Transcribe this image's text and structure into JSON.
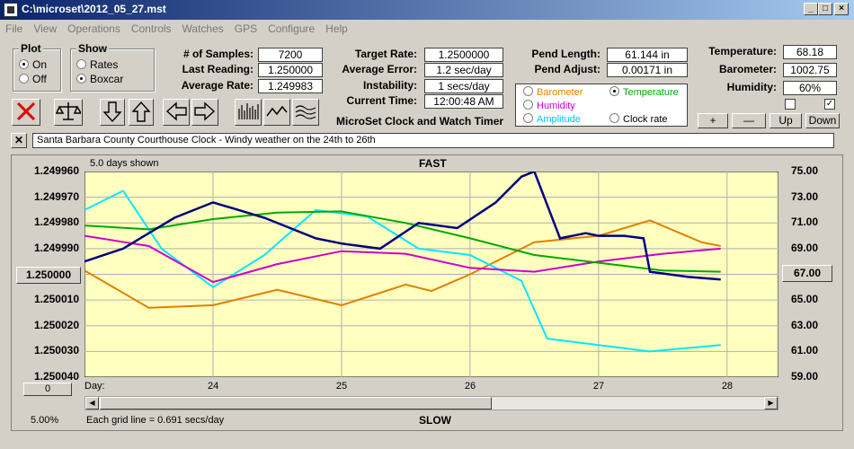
{
  "window": {
    "title": "C:\\microset\\2012_05_27.mst"
  },
  "menu": [
    "File",
    "View",
    "Operations",
    "Controls",
    "Watches",
    "GPS",
    "Configure",
    "Help"
  ],
  "plot": {
    "label": "Plot",
    "on": "On",
    "off": "Off",
    "selected": "On"
  },
  "show": {
    "label": "Show",
    "rates": "Rates",
    "boxcar": "Boxcar",
    "selected": "Boxcar"
  },
  "stats": {
    "samples_label": "# of Samples:",
    "samples": "7200",
    "last_label": "Last Reading:",
    "last": "1.250000",
    "avg_label": "Average Rate:",
    "avg": "1.249983",
    "target_label": "Target Rate:",
    "target": "1.2500000",
    "err_label": "Average Error:",
    "err": "1.2 sec/day",
    "inst_label": "Instability:",
    "inst": "1 secs/day",
    "time_label": "Current Time:",
    "time": "12:00:48 AM",
    "pendlen_label": "Pend Length:",
    "pendlen": "61.144 in",
    "pendadj_label": "Pend Adjust:",
    "pendadj": "0.00171 in",
    "temp_label": "Temperature:",
    "temp": "68.18",
    "baro_label": "Barometer:",
    "baro": "1002.75",
    "hum_label": "Humidity:",
    "hum": "60%"
  },
  "app_name": "MicroSet Clock and Watch Timer",
  "series_select": {
    "barometer": "Barometer",
    "temperature": "Temperature",
    "humidity": "Humidity",
    "amplitude": "Amplitude",
    "clockrate": "Clock rate",
    "selected": "Temperature"
  },
  "adjust_buttons": {
    "plus": "+",
    "minus": "—",
    "up": "Up",
    "down": "Down"
  },
  "notes": "Santa Barbara County Courthouse Clock - Windy weather on the 24th to 26th",
  "chart": {
    "days_shown": "5.0 days shown",
    "fast": "FAST",
    "slow": "SLOW",
    "left_ticks": [
      "1.249960",
      "1.249970",
      "1.249980",
      "1.249990",
      "1.250000",
      "1.250010",
      "1.250020",
      "1.250030",
      "1.250040"
    ],
    "right_ticks": [
      "75.00",
      "73.00",
      "71.00",
      "69.00",
      "67.00",
      "65.00",
      "63.00",
      "61.00",
      "59.00"
    ],
    "left_center_button": "1.250000",
    "right_center_button": "67.00",
    "zero_button": "0",
    "day_label": "Day:",
    "day_ticks": [
      "24",
      "25",
      "26",
      "27",
      "28"
    ],
    "percent": "5.00%",
    "grid_note": "Each grid line = 0.691 secs/day"
  },
  "colors": {
    "plot_bg": "#ffffc0",
    "rate": "#000080",
    "temperature": "#00aa00",
    "humidity": "#cc00cc",
    "barometer": "#e08000",
    "amplitude": "#00e8ff"
  },
  "chart_data": {
    "type": "line",
    "xlabel": "Day:",
    "x_ticks": [
      24,
      25,
      26,
      27,
      28
    ],
    "y_left_range": [
      1.24996,
      1.25004
    ],
    "y_right_range": [
      59,
      75
    ],
    "series": [
      {
        "name": "Clock rate",
        "axis": "left",
        "x": [
          23.0,
          23.3,
          23.7,
          24.0,
          24.4,
          24.8,
          25.0,
          25.3,
          25.6,
          25.9,
          26.2,
          26.4,
          26.5,
          26.7,
          26.9,
          27.0,
          27.2,
          27.35,
          27.4,
          27.7,
          27.95
        ],
        "y": [
          1.249995,
          1.24999,
          1.249978,
          1.249972,
          1.249978,
          1.249986,
          1.249988,
          1.24999,
          1.24998,
          1.249982,
          1.249972,
          1.249962,
          1.24996,
          1.249986,
          1.249984,
          1.249985,
          1.249985,
          1.249986,
          1.249999,
          1.250001,
          1.250002
        ]
      },
      {
        "name": "Temperature",
        "axis": "right",
        "x": [
          23.0,
          23.5,
          24.0,
          24.5,
          25.0,
          25.5,
          26.0,
          26.5,
          27.0,
          27.5,
          27.95
        ],
        "y": [
          70.8,
          70.5,
          71.3,
          71.8,
          71.9,
          71.0,
          69.8,
          68.5,
          67.9,
          67.3,
          67.2
        ]
      },
      {
        "name": "Humidity",
        "axis": "right",
        "x": [
          23.0,
          23.5,
          24.0,
          24.5,
          25.0,
          25.5,
          26.0,
          26.5,
          27.0,
          27.5,
          27.95
        ],
        "y": [
          70.0,
          69.2,
          66.4,
          67.8,
          68.8,
          68.6,
          67.5,
          67.2,
          68.0,
          68.6,
          69.0
        ]
      },
      {
        "name": "Barometer",
        "axis": "right",
        "x": [
          23.0,
          23.5,
          24.0,
          24.5,
          25.0,
          25.5,
          25.7,
          26.0,
          26.5,
          27.0,
          27.4,
          27.8,
          27.95
        ],
        "y": [
          67.3,
          64.4,
          64.6,
          65.8,
          64.6,
          66.2,
          65.7,
          67.0,
          69.5,
          70.0,
          71.2,
          69.5,
          69.2
        ]
      },
      {
        "name": "Amplitude",
        "axis": "right",
        "x": [
          23.0,
          23.3,
          23.6,
          24.0,
          24.4,
          24.8,
          25.2,
          25.6,
          26.0,
          26.4,
          26.6,
          27.0,
          27.4,
          27.95
        ],
        "y": [
          72.0,
          73.5,
          69.0,
          66.0,
          68.5,
          72.0,
          71.5,
          69.0,
          68.5,
          66.5,
          62.0,
          61.5,
          61.0,
          61.5
        ]
      }
    ]
  }
}
